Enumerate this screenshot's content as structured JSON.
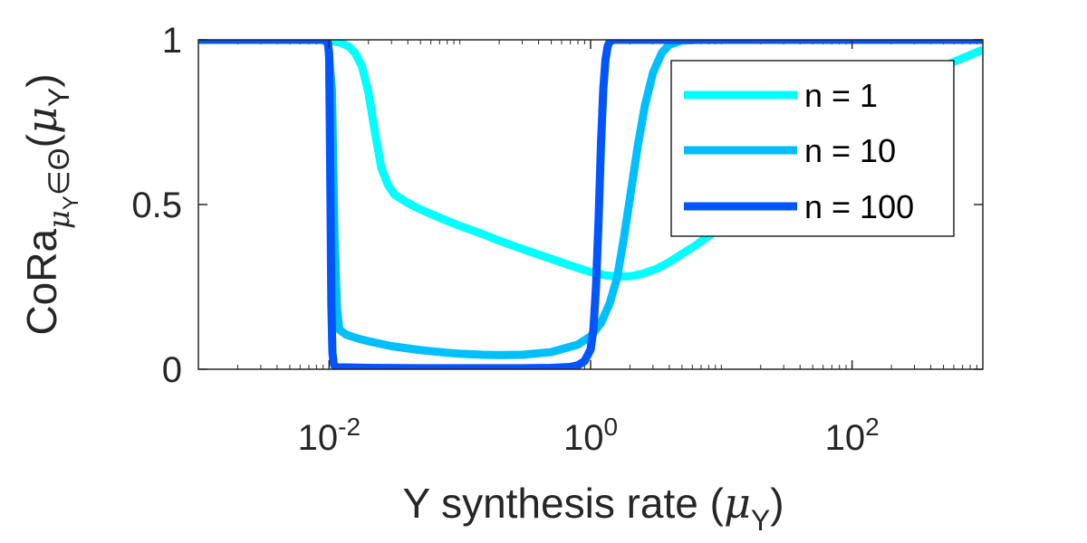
{
  "chart_data": {
    "type": "line",
    "xscale": "log",
    "xlim": [
      0.001,
      1000
    ],
    "ylim": [
      0,
      1
    ],
    "xticks": [
      0.01,
      1,
      100
    ],
    "xtick_labels": [
      {
        "base": "10",
        "exp": "-2"
      },
      {
        "base": "10",
        "exp": "0"
      },
      {
        "base": "10",
        "exp": "2"
      }
    ],
    "yticks": [
      0,
      0.5,
      1
    ],
    "ytick_labels": [
      "0",
      "0.5",
      "1"
    ],
    "xlabel": {
      "main": "Y synthesis rate (",
      "mu": "μ",
      "sub": "Y",
      "close": ")"
    },
    "ylabel": {
      "main": "CoRa",
      "sub": "μ",
      "subsub": "Y",
      "sub2": "∈Θ",
      "paren_open": "(",
      "mu": "μ",
      "mu_sub": "Y",
      "paren_close": ")"
    },
    "grid": false,
    "legend_position": "top-right",
    "series": [
      {
        "name": "n = 1",
        "color": "#00FFFF",
        "x": [
          0.001,
          0.005,
          0.009,
          0.011,
          0.0125,
          0.0141,
          0.0158,
          0.0178,
          0.02,
          0.0224,
          0.0251,
          0.0282,
          0.0316,
          0.0398,
          0.05,
          0.07,
          0.1,
          0.15,
          0.2,
          0.3,
          0.5,
          0.7,
          1.0,
          1.3,
          1.6,
          2.0,
          2.5,
          3.2,
          4.0,
          5.0,
          6.3,
          8.0,
          10,
          15,
          20,
          30,
          50,
          100,
          200,
          500,
          1000
        ],
        "y": [
          1.0,
          1.0,
          1.0,
          0.995,
          0.99,
          0.98,
          0.96,
          0.92,
          0.84,
          0.72,
          0.61,
          0.56,
          0.53,
          0.505,
          0.485,
          0.46,
          0.435,
          0.41,
          0.39,
          0.365,
          0.335,
          0.315,
          0.295,
          0.285,
          0.282,
          0.282,
          0.29,
          0.305,
          0.325,
          0.35,
          0.375,
          0.405,
          0.43,
          0.48,
          0.52,
          0.57,
          0.64,
          0.74,
          0.83,
          0.92,
          0.97
        ]
      },
      {
        "name": "n = 10",
        "color": "#00BFFF",
        "x": [
          0.001,
          0.005,
          0.009,
          0.0098,
          0.0105,
          0.011,
          0.0115,
          0.012,
          0.0135,
          0.016,
          0.02,
          0.03,
          0.05,
          0.08,
          0.1,
          0.15,
          0.2,
          0.3,
          0.5,
          0.8,
          1.0,
          1.2,
          1.4,
          1.6,
          1.8,
          2.0,
          2.3,
          2.6,
          3.0,
          3.5,
          4.0,
          5.0,
          7.0,
          10,
          100,
          1000
        ],
        "y": [
          1.0,
          1.0,
          1.0,
          0.99,
          0.85,
          0.4,
          0.18,
          0.12,
          0.105,
          0.095,
          0.085,
          0.07,
          0.058,
          0.05,
          0.047,
          0.044,
          0.043,
          0.044,
          0.052,
          0.075,
          0.1,
          0.14,
          0.2,
          0.28,
          0.4,
          0.52,
          0.68,
          0.8,
          0.9,
          0.96,
          0.985,
          0.998,
          1.0,
          1.0,
          1.0,
          1.0
        ]
      },
      {
        "name": "n = 100",
        "color": "#0055FF",
        "x": [
          0.001,
          0.005,
          0.0097,
          0.01,
          0.0102,
          0.0104,
          0.0106,
          0.0108,
          0.011,
          0.0115,
          0.02,
          0.05,
          0.1,
          0.2,
          0.3,
          0.5,
          0.7,
          0.8,
          0.9,
          1.0,
          1.05,
          1.1,
          1.15,
          1.2,
          1.25,
          1.3,
          1.35,
          1.4,
          1.5,
          2.0,
          10,
          100,
          1000
        ],
        "y": [
          1.0,
          1.0,
          1.0,
          0.96,
          0.6,
          0.2,
          0.05,
          0.02,
          0.01,
          0.006,
          0.004,
          0.003,
          0.003,
          0.003,
          0.003,
          0.004,
          0.007,
          0.012,
          0.025,
          0.06,
          0.12,
          0.25,
          0.45,
          0.68,
          0.85,
          0.94,
          0.98,
          0.995,
          1.0,
          1.0,
          1.0,
          1.0,
          1.0
        ]
      }
    ]
  }
}
